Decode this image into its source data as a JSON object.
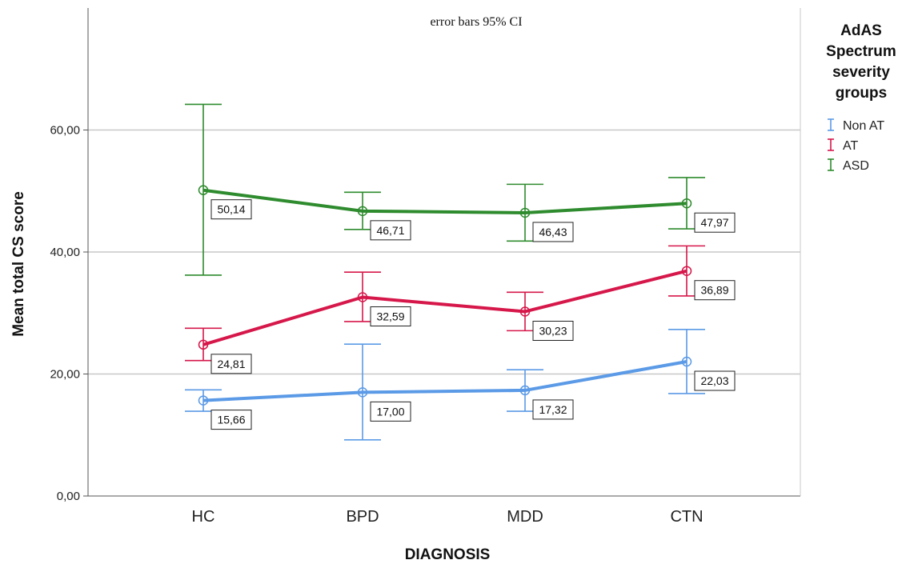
{
  "chart_data": {
    "type": "line",
    "subtitle": "error bars 95% CI",
    "xlabel": "DIAGNOSIS",
    "ylabel": "Mean total CS score",
    "categories": [
      "HC",
      "BPD",
      "MDD",
      "CTN"
    ],
    "ylim": [
      0,
      80
    ],
    "yticks": [
      0,
      20,
      40,
      60
    ],
    "ytick_labels": [
      "0,00",
      "20,00",
      "40,00",
      "60,00"
    ],
    "grid": "horizontal",
    "legend": {
      "title": [
        "AdAS",
        "Spectrum",
        "severity",
        "groups"
      ],
      "placement": "right",
      "entries": [
        "Non AT",
        "AT",
        "ASD"
      ]
    },
    "series": [
      {
        "name": "Non AT",
        "color": "#5b9ae6",
        "values": [
          15.66,
          17.0,
          17.32,
          22.03
        ],
        "labels": [
          "15,66",
          "17,00",
          "17,32",
          "22,03"
        ],
        "ci_low": [
          13.9,
          9.2,
          13.9,
          16.8
        ],
        "ci_high": [
          17.4,
          24.9,
          20.7,
          27.3
        ]
      },
      {
        "name": "AT",
        "color": "#d6174a",
        "values": [
          24.81,
          32.59,
          30.23,
          36.89
        ],
        "labels": [
          "24,81",
          "32,59",
          "30,23",
          "36,89"
        ],
        "ci_low": [
          22.2,
          28.6,
          27.1,
          32.8
        ],
        "ci_high": [
          27.5,
          36.7,
          33.4,
          41.0
        ]
      },
      {
        "name": "ASD",
        "color": "#2e8b2e",
        "values": [
          50.14,
          46.71,
          46.43,
          47.97
        ],
        "labels": [
          "50,14",
          "46,71",
          "46,43",
          "47,97"
        ],
        "ci_low": [
          36.2,
          43.7,
          41.8,
          43.8
        ],
        "ci_high": [
          64.2,
          49.8,
          51.1,
          52.2
        ]
      }
    ]
  }
}
